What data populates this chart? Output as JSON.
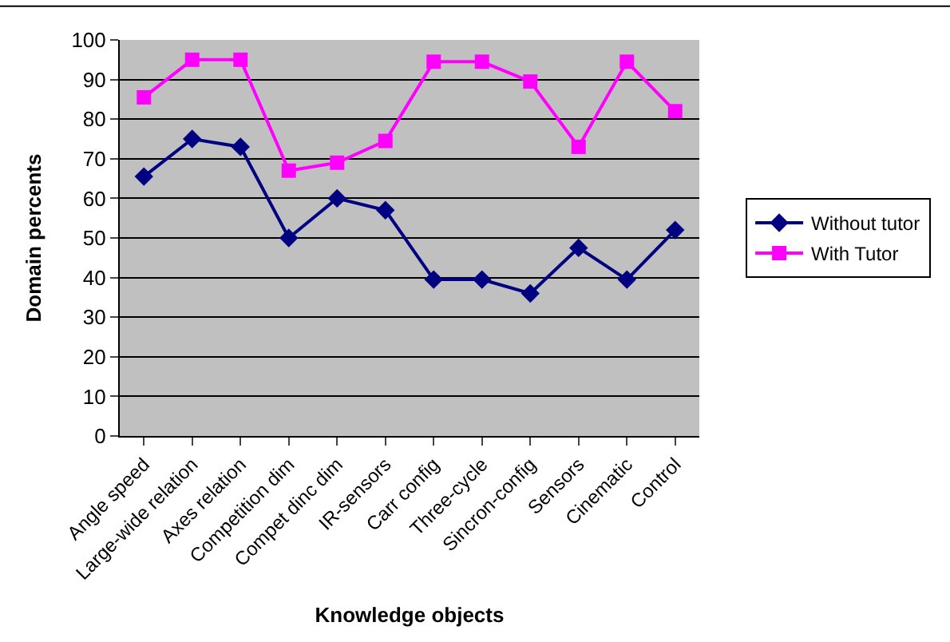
{
  "chart_data": {
    "type": "line",
    "xlabel": "Knowledge objects",
    "ylabel": "Domain percents",
    "categories": [
      "Angle speed",
      "Large-wide relation",
      "Axes relation",
      "Competition dim",
      "Compet dinc dim",
      "IR-sensors",
      "Carr config",
      "Three-cycle",
      "Sincron-config",
      "Sensors",
      "Cinematic",
      "Control"
    ],
    "series": [
      {
        "name": "Without tutor",
        "color": "#000080",
        "marker": "diamond",
        "values": [
          65.5,
          75,
          73,
          50,
          60,
          57,
          39.5,
          39.5,
          36,
          47.5,
          39.5,
          52
        ]
      },
      {
        "name": "With Tutor",
        "color": "#ff00ff",
        "marker": "square",
        "values": [
          85.5,
          95,
          95,
          67,
          69,
          74.5,
          94.5,
          94.5,
          89.5,
          73,
          94.5,
          82
        ]
      }
    ],
    "ylim": [
      0,
      100
    ],
    "yticks": [
      0,
      10,
      20,
      30,
      40,
      50,
      60,
      70,
      80,
      90,
      100
    ],
    "grid": "y",
    "legend": "right",
    "line_style": "solid"
  }
}
